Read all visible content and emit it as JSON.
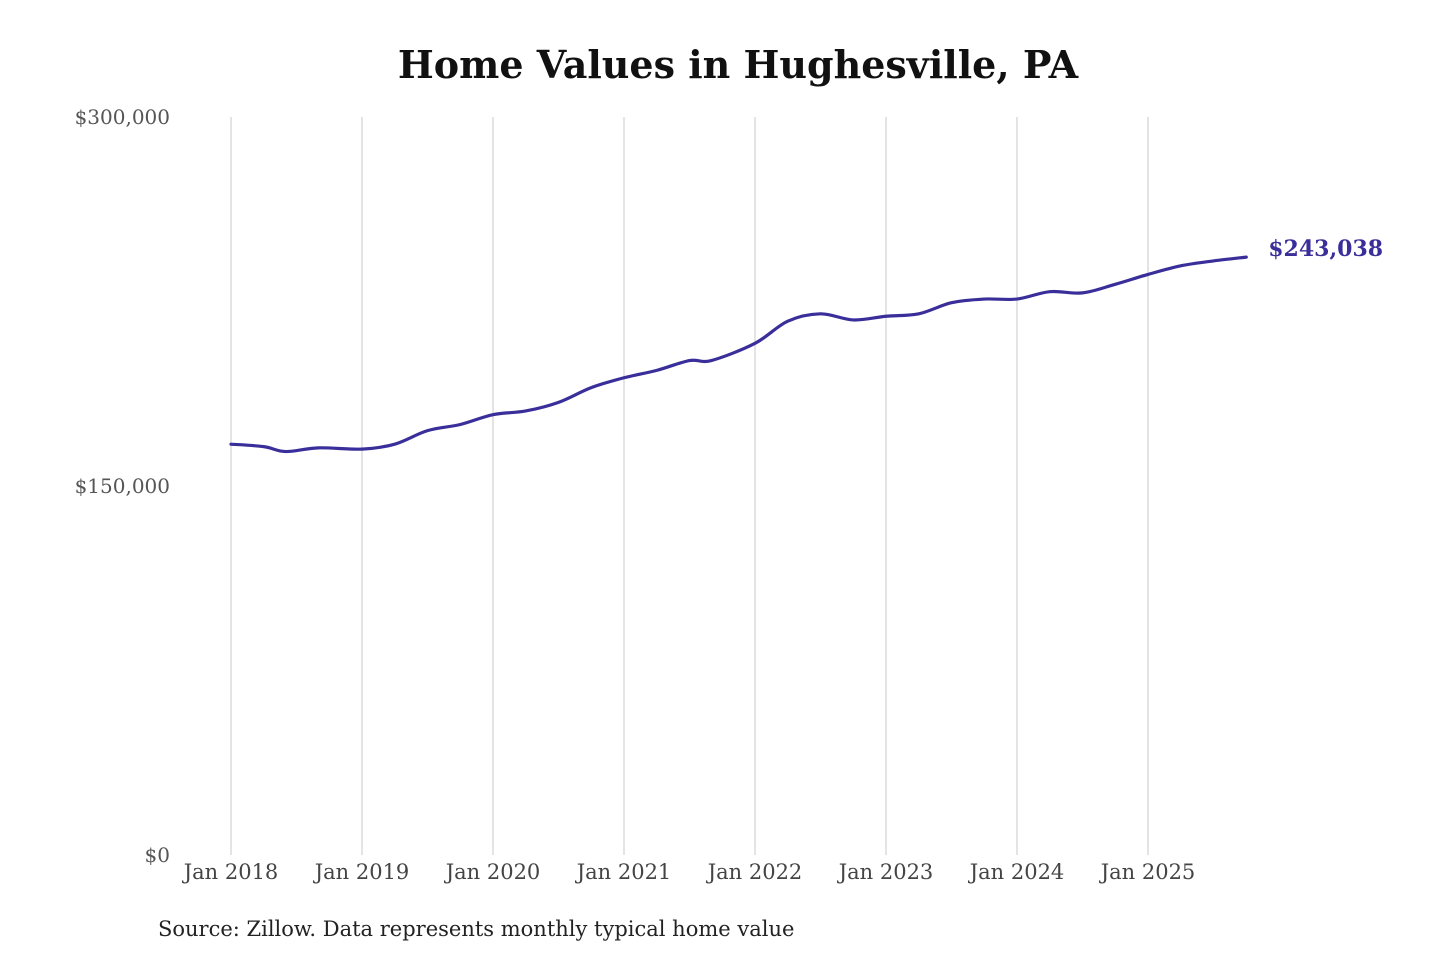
{
  "chart_data": {
    "type": "line",
    "title": "Home Values in Hughesville, PA",
    "source": "Source: Zillow. Data represents monthly typical home value",
    "xlabel": "",
    "ylabel": "",
    "ylim": [
      0,
      300000
    ],
    "yticks": [
      0,
      150000,
      300000
    ],
    "ytick_labels": [
      "$0",
      "$150,000",
      "$300,000"
    ],
    "xticks": [
      "2018-01",
      "2019-01",
      "2020-01",
      "2021-01",
      "2022-01",
      "2023-01",
      "2024-01",
      "2025-01"
    ],
    "xtick_labels": [
      "Jan 2018",
      "Jan 2019",
      "Jan 2020",
      "Jan 2021",
      "Jan 2022",
      "Jan 2023",
      "Jan 2024",
      "Jan 2025"
    ],
    "grid": "vertical",
    "line_color": "#3a2f9a",
    "end_label": "$243,038",
    "series": [
      {
        "x": [
          "2018-01",
          "2018-04",
          "2018-06",
          "2018-09",
          "2019-01",
          "2019-04",
          "2019-07",
          "2019-10",
          "2020-01",
          "2020-04",
          "2020-07",
          "2020-10",
          "2021-01",
          "2021-04",
          "2021-07",
          "2021-09",
          "2022-01",
          "2022-04",
          "2022-07",
          "2022-10",
          "2023-01",
          "2023-04",
          "2023-07",
          "2023-10",
          "2024-01",
          "2024-04",
          "2024-07",
          "2024-10",
          "2025-01",
          "2025-04",
          "2025-07",
          "2025-10"
        ],
        "y": [
          167000,
          166000,
          164000,
          165500,
          165000,
          167000,
          172500,
          175000,
          179000,
          180500,
          184000,
          190000,
          194000,
          197000,
          201000,
          201000,
          208000,
          217000,
          220000,
          217500,
          219000,
          220000,
          224500,
          226000,
          226000,
          229000,
          228500,
          232000,
          236000,
          239500,
          241500,
          243038
        ]
      }
    ]
  }
}
